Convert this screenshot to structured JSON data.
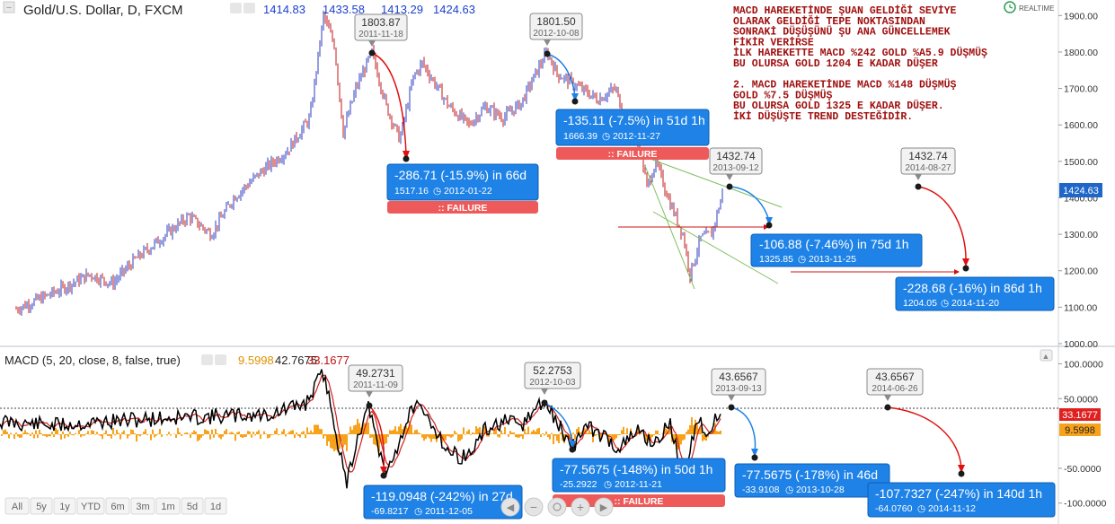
{
  "symbol_title": "Gold/U.S. Dollar, D, FXCM",
  "ohlc": [
    "1414.83",
    "1433.58",
    "1413.29",
    "1424.63"
  ],
  "realtime_label": "REALTIME",
  "annotation_lines": [
    "MACD HAREKETİNDE ŞUAN GELDİĞİ SEVİYE",
    "OLARAK GELDİĞİ TEPE NOKTASINDAN",
    "SONRAKİ DÜŞÜŞÜNÜ ŞU ANA GÜNCELLEMEK",
    "FİKİR VERİRSE",
    "İLK HAREKETTE MACD %242 GOLD %A5.9 DÜŞMÜŞ",
    "BU OLURSA GOLD 1204 E KADAR DÜŞER",
    "",
    "2. MACD HAREKETİNDE MACD %148 DÜŞMÜŞ",
    "GOLD %7.5 DÜŞMÜŞ",
    "BU OLURSA GOLD 1325 E KADAR DÜŞER.",
    "İKİ DÜŞÜŞTE TREND DESTEĞİDİR."
  ],
  "macd_title": "MACD (5, 20, close, 8, false, true)",
  "macd_values": [
    "9.5998",
    "42.7675",
    "33.1677"
  ],
  "colors": {
    "candle_up": "#2e3cbf",
    "candle_down": "#c01818",
    "callout_blue": "#1e82e6",
    "callout_blue_border": "#0d5fb5",
    "failure_red": "#ee5a5a",
    "arrow_red": "#e01010",
    "arrow_blue": "#1e82e6",
    "macd_line": "#000000",
    "signal_line": "#d02020",
    "histogram": "#f7a21b",
    "trend_green": "#7fbf5f",
    "price_tag": "#1e66c8",
    "macd_tag": "#e02020",
    "hist_tag": "#f7a21b"
  },
  "price_axis_labels": [
    "1900.00",
    "1800.00",
    "1700.00",
    "1600.00",
    "1500.00",
    "1400.00",
    "1300.00",
    "1200.00",
    "1100.00",
    "1000.00"
  ],
  "macd_axis_labels": [
    "100.0000",
    "50.0000",
    "-50.0000",
    "-100.0000"
  ],
  "price_tag": "1424.63",
  "macd_tag": "33.1677",
  "hist_tag": "9.5998",
  "chart_data": [
    {
      "type": "candlestick",
      "title": "Gold/U.S. Dollar, D, FXCM",
      "ylim": [
        1000,
        1950
      ],
      "last": {
        "open": 1414.83,
        "high": 1433.58,
        "low": 1413.29,
        "close": 1424.63
      },
      "price_marks": [
        {
          "value": "1803.87",
          "date": "2011-11-18"
        },
        {
          "value": "1801.50",
          "date": "2012-10-08"
        },
        {
          "value": "1432.74",
          "date": "2013-09-12"
        },
        {
          "value": "1432.74",
          "date": "2014-08-27"
        }
      ],
      "projections": [
        {
          "change": "-286.71 (-15.9%) in 66d",
          "target": "1517.16",
          "date": "2012-01-22",
          "status": ":: FAILURE"
        },
        {
          "change": "-135.11 (-7.5%) in 51d 1h",
          "target": "1666.39",
          "date": "2012-11-27",
          "status": ":: FAILURE"
        },
        {
          "change": "-106.88 (-7.46%) in 75d 1h",
          "target": "1325.85",
          "date": "2013-11-25"
        },
        {
          "change": "-228.68 (-16%) in 86d 1h",
          "target": "1204.05",
          "date": "2014-11-20"
        }
      ]
    },
    {
      "type": "macd",
      "title": "MACD (5, 20, close, 8, false, true)",
      "ylim": [
        -130,
        120
      ],
      "histogram": 9.5998,
      "macd": 42.7675,
      "signal": 33.1677,
      "macd_marks": [
        {
          "value": "49.2731",
          "date": "2011-11-09"
        },
        {
          "value": "52.2753",
          "date": "2012-10-03"
        },
        {
          "value": "43.6567",
          "date": "2013-09-13"
        },
        {
          "value": "43.6567",
          "date": "2014-06-26"
        }
      ],
      "projections": [
        {
          "change": "-119.0948 (-242%) in 27d",
          "target": "-69.8217",
          "date": "2011-12-05"
        },
        {
          "change": "-77.5675 (-148%) in 50d 1h",
          "target": "-25.2922",
          "date": "2012-11-21",
          "status": ":: FAILURE"
        },
        {
          "change": "-77.5675 (-178%) in 46d",
          "target": "-33.9108",
          "date": "2013-10-28"
        },
        {
          "change": "-107.7327 (-247%) in 140d 1h",
          "target": "-64.0760",
          "date": "2014-11-12"
        }
      ]
    }
  ],
  "timeframes": [
    "All",
    "5y",
    "1y",
    "YTD",
    "6m",
    "3m",
    "1m",
    "5d",
    "1d"
  ]
}
